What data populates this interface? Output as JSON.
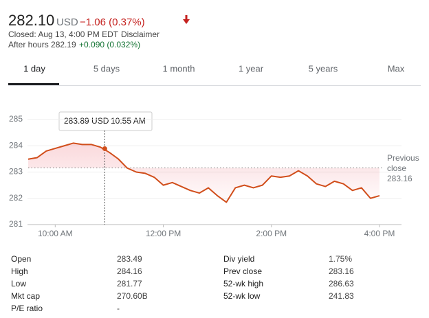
{
  "header": {
    "price": "282.10",
    "currency": "USD",
    "change": "−1.06 (0.37%)",
    "closed": "Closed: Aug 13, 4:00 PM EDT ·",
    "disclaimer": "Disclaimer",
    "after_hours": "After hours 282.19",
    "after_hours_change": "+0.090 (0.032%)"
  },
  "tabs": [
    "1 day",
    "5 days",
    "1 month",
    "1 year",
    "5 years",
    "Max"
  ],
  "chart_data": {
    "type": "line",
    "color": "#d14e1b",
    "x": [
      "9:30 AM",
      "9:40 AM",
      "9:50 AM",
      "10:00 AM",
      "10:10 AM",
      "10:20 AM",
      "10:30 AM",
      "10:40 AM",
      "10:50 AM",
      "11:00 AM",
      "11:10 AM",
      "11:20 AM",
      "11:30 AM",
      "11:40 AM",
      "11:50 AM",
      "12:00 PM",
      "12:10 PM",
      "12:20 PM",
      "12:30 PM",
      "12:40 PM",
      "12:50 PM",
      "1:00 PM",
      "1:10 PM",
      "1:20 PM",
      "1:30 PM",
      "1:40 PM",
      "1:50 PM",
      "2:00 PM",
      "2:10 PM",
      "2:20 PM",
      "2:30 PM",
      "2:40 PM",
      "2:50 PM",
      "3:00 PM",
      "3:10 PM",
      "3:20 PM",
      "3:30 PM",
      "3:40 PM",
      "3:50 PM",
      "4:00 PM"
    ],
    "values": [
      283.49,
      283.55,
      283.8,
      283.9,
      284.0,
      284.1,
      284.05,
      284.05,
      283.95,
      283.75,
      283.5,
      283.15,
      283.0,
      282.95,
      282.8,
      282.5,
      282.6,
      282.45,
      282.3,
      282.2,
      282.4,
      282.1,
      281.85,
      282.4,
      282.5,
      282.4,
      282.5,
      282.85,
      282.8,
      282.85,
      283.05,
      282.85,
      282.55,
      282.45,
      282.65,
      282.55,
      282.3,
      282.4,
      282.0,
      282.1
    ],
    "ylim": [
      281,
      285
    ],
    "yticks": [
      281,
      282,
      283,
      284,
      285
    ],
    "xticks": [
      "10:00 AM",
      "12:00 PM",
      "2:00 PM",
      "4:00 PM"
    ],
    "previous_close_label": "Previous close",
    "previous_close": 283.16,
    "tooltip": {
      "value": 283.89,
      "label": "283.89 USD",
      "time": "10:55 AM"
    }
  },
  "stats": {
    "left": [
      [
        "Open",
        "283.49"
      ],
      [
        "High",
        "284.16"
      ],
      [
        "Low",
        "281.77"
      ],
      [
        "Mkt cap",
        "270.60B"
      ],
      [
        "P/E ratio",
        "-"
      ]
    ],
    "right": [
      [
        "Div yield",
        "1.75%"
      ],
      [
        "Prev close",
        "283.16"
      ],
      [
        "52-wk high",
        "286.63"
      ],
      [
        "52-wk low",
        "241.83"
      ]
    ]
  }
}
